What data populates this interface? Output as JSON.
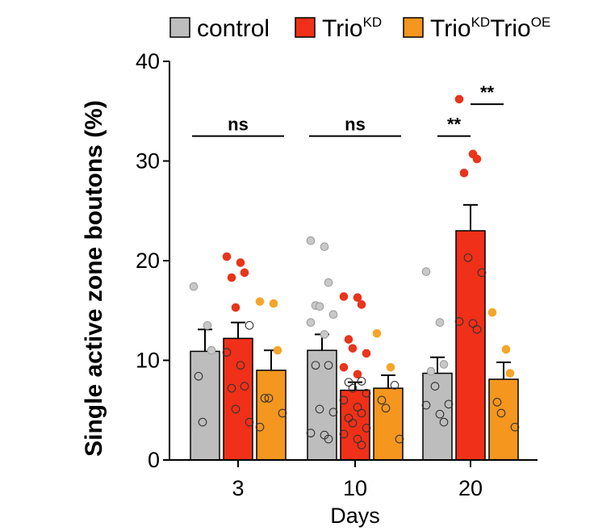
{
  "chart_data": {
    "type": "bar",
    "title": "",
    "xlabel": "Days",
    "ylabel": "Single active zone boutons (%)",
    "ylim": [
      0,
      40
    ],
    "yticks": [
      "0",
      "10",
      "20",
      "30",
      "40"
    ],
    "categories": [
      "3",
      "10",
      "20"
    ],
    "legend_position": "top",
    "series": [
      {
        "name": "control",
        "label_main": "control",
        "label_sup": "",
        "color": "#bdbdbd",
        "point_color": "#c8c8c8",
        "values": [
          10.9,
          11.0,
          8.7
        ],
        "errors": [
          2.2,
          1.6,
          1.6
        ],
        "points": [
          [
            17.4,
            13.5,
            11.0,
            8.4,
            3.8
          ],
          [
            22.0,
            21.4,
            17.8,
            15.5,
            15.4,
            14.6,
            13.8,
            12.6,
            9.5,
            9.5,
            5.1,
            4.8,
            2.7,
            2.5,
            2.1
          ],
          [
            18.9,
            13.8,
            9.6,
            8.9,
            7.4,
            5.6,
            5.5,
            4.6,
            3.8
          ]
        ],
        "point_filled": [
          [
            true,
            true,
            true,
            false,
            false
          ],
          [
            true,
            true,
            true,
            true,
            true,
            true,
            true,
            true,
            false,
            false,
            false,
            false,
            false,
            false,
            false
          ],
          [
            true,
            true,
            true,
            true,
            false,
            false,
            false,
            false,
            false
          ]
        ]
      },
      {
        "name": "TrioKD",
        "label_main": "Trio",
        "label_sup": "KD",
        "color": "#f03018",
        "point_color": "#e8351c",
        "values": [
          12.2,
          7.0,
          23.0
        ],
        "errors": [
          1.6,
          0.8,
          2.6
        ],
        "points": [
          [
            20.4,
            19.8,
            18.8,
            18.3,
            15.3,
            13.5,
            10.8,
            9.5,
            7.4,
            7.2,
            5.1,
            3.8
          ],
          [
            16.4,
            16.3,
            15.6,
            12.1,
            11.2,
            10.7,
            9.3,
            8.6,
            7.9,
            7.8,
            7.2,
            6.7,
            6.0,
            5.3,
            4.7,
            4.2,
            3.7,
            3.2,
            2.6,
            2.1,
            1.5
          ],
          [
            36.2,
            30.7,
            30.2,
            28.8,
            20.3,
            18.8,
            13.9,
            13.7,
            13.1
          ]
        ],
        "point_filled": [
          [
            true,
            true,
            true,
            true,
            true,
            false,
            false,
            false,
            false,
            false,
            false,
            false
          ],
          [
            true,
            true,
            true,
            true,
            true,
            true,
            true,
            true,
            false,
            false,
            false,
            false,
            false,
            false,
            false,
            false,
            false,
            false,
            false,
            false,
            false
          ],
          [
            true,
            true,
            true,
            true,
            false,
            false,
            false,
            false,
            false
          ]
        ]
      },
      {
        "name": "TrioKDTrioOE",
        "label_main": "Trio",
        "label_sup": "KD",
        "label_main2": "Trio",
        "label_sup2": "OE",
        "color": "#f5961e",
        "point_color": "#f5a52a",
        "values": [
          9.0,
          7.2,
          8.1
        ],
        "errors": [
          2.0,
          1.3,
          1.7
        ],
        "points": [
          [
            15.9,
            15.7,
            11.0,
            6.2,
            6.2,
            4.7,
            3.3
          ],
          [
            12.7,
            9.3,
            7.5,
            6.0,
            5.2,
            2.1
          ],
          [
            14.8,
            11.1,
            8.7,
            5.8,
            4.7,
            3.3
          ]
        ],
        "point_filled": [
          [
            true,
            true,
            true,
            false,
            false,
            false,
            false
          ],
          [
            true,
            true,
            false,
            false,
            false,
            false
          ],
          [
            true,
            true,
            true,
            false,
            false,
            false
          ]
        ]
      }
    ],
    "annotations": [
      {
        "label": "ns",
        "group": 0,
        "from": 0,
        "to": 2,
        "y": 32.5
      },
      {
        "label": "ns",
        "group": 1,
        "from": 0,
        "to": 2,
        "y": 32.5
      },
      {
        "label": "**",
        "group": 2,
        "from": 0,
        "to": 1,
        "y": 32.5
      },
      {
        "label": "**",
        "group": 2,
        "from": 1,
        "to": 2,
        "y": 35.7
      }
    ]
  }
}
